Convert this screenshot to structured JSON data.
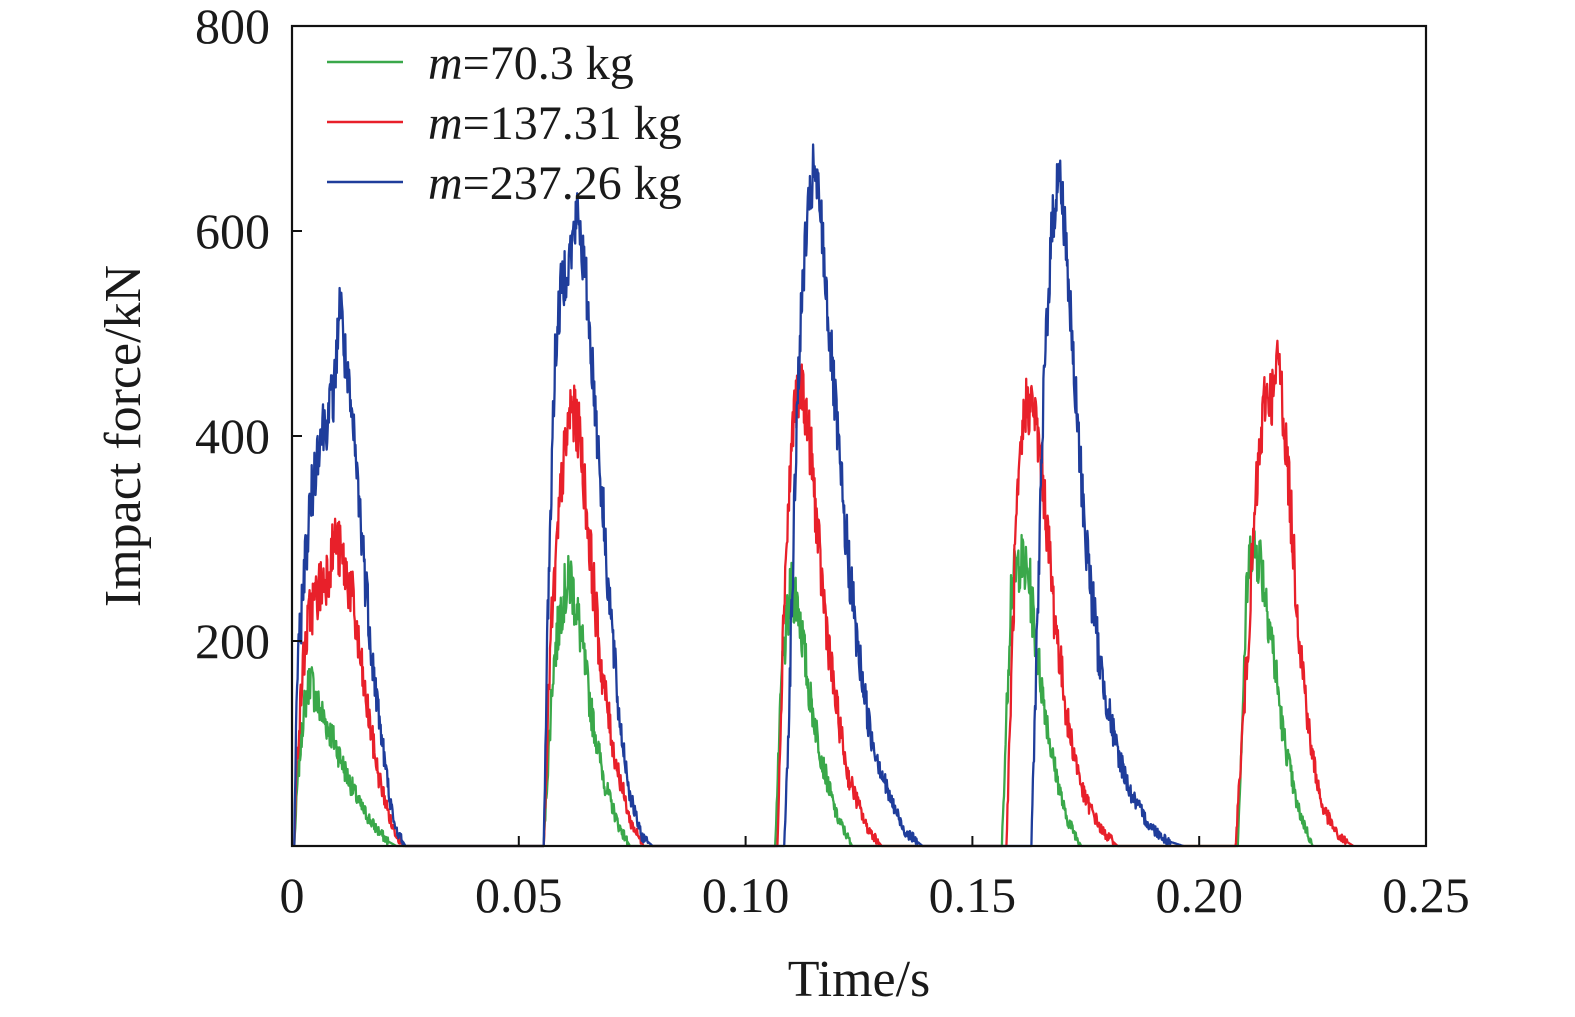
{
  "chart_data": {
    "type": "line",
    "title": "",
    "xlabel": "Time/s",
    "ylabel": "Impact force/kN",
    "xlim": [
      0,
      0.25
    ],
    "ylim": [
      0,
      800
    ],
    "grid": false,
    "legend_position": "top-left",
    "x_ticks": [
      "0",
      "0.05",
      "0.10",
      "0.15",
      "0.20",
      "0.25"
    ],
    "x_tick_values": [
      0,
      0.05,
      0.1,
      0.15,
      0.2,
      0.25
    ],
    "y_ticks": [
      "200",
      "400",
      "600",
      "800"
    ],
    "y_tick_values": [
      200,
      400,
      600,
      800
    ],
    "series": [
      {
        "name_prefix": "m",
        "name_suffix": "=70.3 kg",
        "color": "#3aa84a",
        "points": [
          [
            0.0005,
            0
          ],
          [
            0.0012,
            60
          ],
          [
            0.0025,
            130
          ],
          [
            0.004,
            165
          ],
          [
            0.0055,
            140
          ],
          [
            0.0075,
            120
          ],
          [
            0.0095,
            100
          ],
          [
            0.012,
            70
          ],
          [
            0.015,
            40
          ],
          [
            0.018,
            20
          ],
          [
            0.021,
            5
          ],
          [
            0.023,
            0
          ],
          [
            0.0555,
            0
          ],
          [
            0.0575,
            170
          ],
          [
            0.0595,
            240
          ],
          [
            0.0615,
            260
          ],
          [
            0.0635,
            210
          ],
          [
            0.066,
            130
          ],
          [
            0.069,
            60
          ],
          [
            0.072,
            20
          ],
          [
            0.0745,
            0
          ],
          [
            0.1065,
            0
          ],
          [
            0.108,
            170
          ],
          [
            0.11,
            250
          ],
          [
            0.1115,
            240
          ],
          [
            0.114,
            150
          ],
          [
            0.117,
            80
          ],
          [
            0.12,
            30
          ],
          [
            0.1235,
            0
          ],
          [
            0.1565,
            0
          ],
          [
            0.1585,
            250
          ],
          [
            0.1605,
            280
          ],
          [
            0.1625,
            260
          ],
          [
            0.1645,
            180
          ],
          [
            0.1675,
            90
          ],
          [
            0.1705,
            30
          ],
          [
            0.174,
            0
          ],
          [
            0.2085,
            0
          ],
          [
            0.2105,
            250
          ],
          [
            0.2115,
            295
          ],
          [
            0.2135,
            280
          ],
          [
            0.2155,
            220
          ],
          [
            0.2185,
            110
          ],
          [
            0.2215,
            40
          ],
          [
            0.225,
            0
          ]
        ]
      },
      {
        "name_prefix": "m",
        "name_suffix": "=137.31 kg",
        "color": "#e8202a",
        "points": [
          [
            0.0005,
            0
          ],
          [
            0.001,
            80
          ],
          [
            0.0025,
            180
          ],
          [
            0.004,
            230
          ],
          [
            0.006,
            250
          ],
          [
            0.008,
            270
          ],
          [
            0.0095,
            300
          ],
          [
            0.011,
            280
          ],
          [
            0.013,
            250
          ],
          [
            0.016,
            150
          ],
          [
            0.019,
            70
          ],
          [
            0.022,
            20
          ],
          [
            0.0245,
            0
          ],
          [
            0.0555,
            0
          ],
          [
            0.057,
            200
          ],
          [
            0.0595,
            360
          ],
          [
            0.0615,
            430
          ],
          [
            0.0635,
            400
          ],
          [
            0.0655,
            300
          ],
          [
            0.068,
            180
          ],
          [
            0.071,
            90
          ],
          [
            0.0745,
            25
          ],
          [
            0.0775,
            0
          ],
          [
            0.107,
            0
          ],
          [
            0.1085,
            250
          ],
          [
            0.1105,
            420
          ],
          [
            0.1125,
            450
          ],
          [
            0.1145,
            380
          ],
          [
            0.1165,
            270
          ],
          [
            0.1195,
            150
          ],
          [
            0.1225,
            70
          ],
          [
            0.1265,
            20
          ],
          [
            0.13,
            0
          ],
          [
            0.1575,
            0
          ],
          [
            0.1595,
            300
          ],
          [
            0.1615,
            430
          ],
          [
            0.1635,
            430
          ],
          [
            0.1655,
            360
          ],
          [
            0.168,
            230
          ],
          [
            0.171,
            120
          ],
          [
            0.1745,
            50
          ],
          [
            0.1785,
            15
          ],
          [
            0.182,
            0
          ],
          [
            0.208,
            0
          ],
          [
            0.2105,
            180
          ],
          [
            0.2125,
            340
          ],
          [
            0.2145,
            440
          ],
          [
            0.2165,
            440
          ],
          [
            0.2175,
            480
          ],
          [
            0.2195,
            370
          ],
          [
            0.222,
            210
          ],
          [
            0.2245,
            100
          ],
          [
            0.227,
            40
          ],
          [
            0.2305,
            10
          ],
          [
            0.234,
            0
          ]
        ]
      },
      {
        "name_prefix": "m",
        "name_suffix": "=237.26 kg",
        "color": "#1f3d9b",
        "points": [
          [
            0.0005,
            0
          ],
          [
            0.001,
            150
          ],
          [
            0.0025,
            260
          ],
          [
            0.004,
            330
          ],
          [
            0.006,
            400
          ],
          [
            0.008,
            420
          ],
          [
            0.0095,
            450
          ],
          [
            0.0105,
            540
          ],
          [
            0.012,
            460
          ],
          [
            0.014,
            380
          ],
          [
            0.016,
            270
          ],
          [
            0.018,
            170
          ],
          [
            0.0205,
            80
          ],
          [
            0.0225,
            20
          ],
          [
            0.025,
            0
          ],
          [
            0.0555,
            0
          ],
          [
            0.0565,
            250
          ],
          [
            0.058,
            480
          ],
          [
            0.0595,
            550
          ],
          [
            0.0615,
            580
          ],
          [
            0.063,
            620
          ],
          [
            0.065,
            540
          ],
          [
            0.067,
            420
          ],
          [
            0.0695,
            270
          ],
          [
            0.072,
            130
          ],
          [
            0.0745,
            50
          ],
          [
            0.077,
            10
          ],
          [
            0.0795,
            0
          ],
          [
            0.1085,
            0
          ],
          [
            0.1095,
            120
          ],
          [
            0.1115,
            450
          ],
          [
            0.113,
            580
          ],
          [
            0.115,
            660
          ],
          [
            0.1165,
            620
          ],
          [
            0.1185,
            500
          ],
          [
            0.1215,
            330
          ],
          [
            0.1245,
            200
          ],
          [
            0.1275,
            110
          ],
          [
            0.1315,
            50
          ],
          [
            0.135,
            15
          ],
          [
            0.139,
            0
          ],
          [
            0.163,
            0
          ],
          [
            0.1645,
            250
          ],
          [
            0.166,
            480
          ],
          [
            0.1675,
            600
          ],
          [
            0.169,
            660
          ],
          [
            0.1705,
            600
          ],
          [
            0.1725,
            450
          ],
          [
            0.175,
            300
          ],
          [
            0.178,
            180
          ],
          [
            0.1815,
            100
          ],
          [
            0.185,
            50
          ],
          [
            0.189,
            20
          ],
          [
            0.193,
            5
          ],
          [
            0.1965,
            0
          ]
        ]
      }
    ]
  }
}
